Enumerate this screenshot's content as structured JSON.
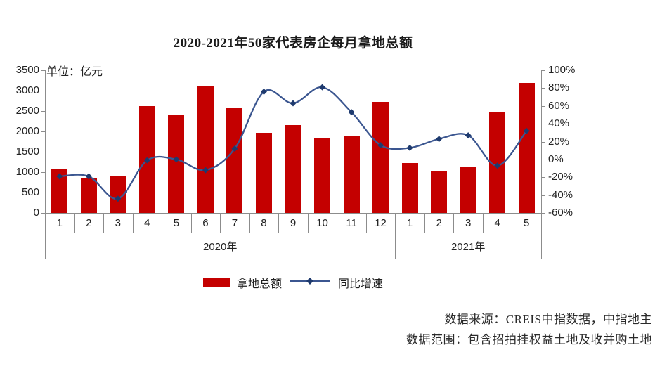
{
  "chart_data": {
    "type": "combo-bar-line",
    "title": "2020-2021年50家代表房企每月拿地总额",
    "unit_label": "单位：亿元",
    "categories": [
      "1",
      "2",
      "3",
      "4",
      "5",
      "6",
      "7",
      "8",
      "9",
      "10",
      "11",
      "12",
      "1",
      "2",
      "3",
      "4",
      "5"
    ],
    "groups": [
      {
        "label": "2020年",
        "span": 12
      },
      {
        "label": "2021年",
        "span": 5
      }
    ],
    "series": [
      {
        "name": "拿地总额",
        "type": "bar",
        "axis": "left",
        "color": "#c40000",
        "values": [
          1070,
          870,
          900,
          2620,
          2410,
          3100,
          2590,
          1970,
          2160,
          1850,
          1880,
          2720,
          1220,
          1030,
          1140,
          2470,
          3190
        ]
      },
      {
        "name": "同比增速",
        "type": "line",
        "axis": "right",
        "color": "#3b5690",
        "marker_color": "#1e3a6e",
        "values": [
          -19,
          -19,
          -44,
          -1,
          0,
          -12,
          12,
          76,
          63,
          81,
          53,
          16,
          13,
          23,
          27,
          -7,
          32
        ]
      }
    ],
    "left_axis": {
      "min": 0,
      "max": 3500,
      "step": 500,
      "tick_labels": [
        "0",
        "500",
        "1000",
        "1500",
        "2000",
        "2500",
        "3000",
        "3500"
      ]
    },
    "right_axis": {
      "min": -60,
      "max": 100,
      "step": 20,
      "tick_labels": [
        "-60%",
        "-40%",
        "-20%",
        "0%",
        "20%",
        "40%",
        "60%",
        "80%",
        "100%"
      ]
    },
    "legend": {
      "position": "bottom",
      "items": [
        "拿地总额",
        "同比增速"
      ]
    },
    "axis_color": "#8c8c8c",
    "grid": "off"
  },
  "footer": {
    "line1": "数据来源：CREIS中指数据，中指地主",
    "line2": "数据范围：包含招拍挂权益土地及收并购土地"
  }
}
